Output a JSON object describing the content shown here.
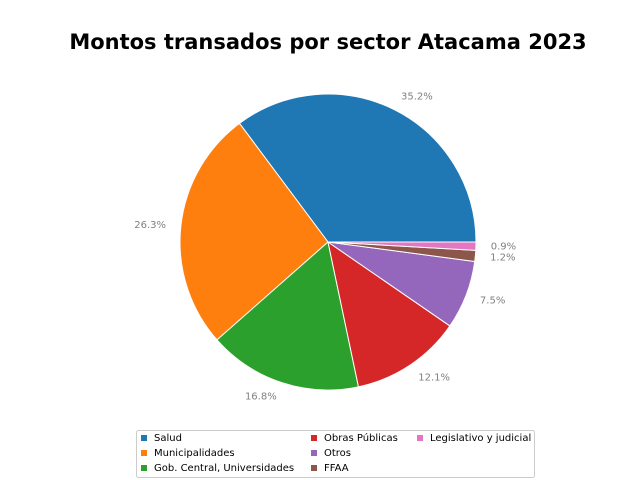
{
  "chart_data": {
    "type": "pie",
    "title": "Montos transados por sector Atacama 2023",
    "slices": [
      {
        "label": "Salud",
        "value": 35.2,
        "pct_label": "35.2%",
        "color": "#1f77b4"
      },
      {
        "label": "Municipalidades",
        "value": 26.3,
        "pct_label": "26.3%",
        "color": "#ff7f0e"
      },
      {
        "label": "Gob. Central, Universidades",
        "value": 16.8,
        "pct_label": "16.8%",
        "color": "#2ca02c"
      },
      {
        "label": "Obras Públicas",
        "value": 12.1,
        "pct_label": "12.1%",
        "color": "#d62728"
      },
      {
        "label": "Otros",
        "value": 7.5,
        "pct_label": "7.5%",
        "color": "#9467bd"
      },
      {
        "label": "FFAA",
        "value": 1.2,
        "pct_label": "1.2%",
        "color": "#8c564b"
      },
      {
        "label": "Legislativo y judicial",
        "value": 0.9,
        "pct_label": "0.9%",
        "color": "#e377c2"
      }
    ],
    "start_angle_deg": 0,
    "direction": "counterclockwise",
    "legend_location": "bottom",
    "legend_columns": 3
  }
}
